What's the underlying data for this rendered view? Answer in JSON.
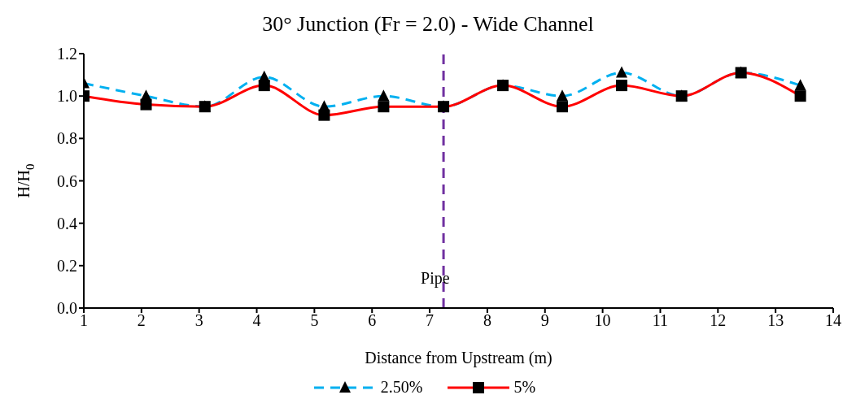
{
  "chart_data": {
    "type": "line",
    "title": "30° Junction (Fr = 2.0) - Wide Channel",
    "xlabel": "Distance from Upstream (m)",
    "ylabel": "H/H$_{0}$",
    "x": [
      1,
      2.08,
      3.1,
      4.13,
      5.17,
      6.2,
      7.24,
      8.27,
      9.3,
      10.33,
      11.37,
      12.4,
      13.43
    ],
    "series": [
      {
        "name": "2.50%",
        "color": "#00b0f0",
        "line_style": "dashed",
        "marker": "triangle",
        "values": [
          1.06,
          1.0,
          0.95,
          1.09,
          0.95,
          1.0,
          0.95,
          1.05,
          1.0,
          1.11,
          1.0,
          1.11,
          1.05
        ]
      },
      {
        "name": "5%",
        "color": "#ff0000",
        "line_style": "solid",
        "marker": "square",
        "values": [
          1.0,
          0.96,
          0.95,
          1.05,
          0.91,
          0.95,
          0.95,
          1.05,
          0.95,
          1.05,
          1.0,
          1.11,
          1.0
        ]
      }
    ],
    "xlim": [
      1,
      14
    ],
    "xticks": [
      1,
      2,
      3,
      4,
      5,
      6,
      7,
      8,
      9,
      10,
      11,
      12,
      13,
      14
    ],
    "ylim": [
      0,
      1.2
    ],
    "yticks": [
      {
        "value": 0,
        "label": "0.0"
      },
      {
        "value": 0.2,
        "label": "0.2"
      },
      {
        "value": 0.4,
        "label": "0.4"
      },
      {
        "value": 0.6,
        "label": "0.6"
      },
      {
        "value": 0.8,
        "label": "0.8"
      },
      {
        "value": 1.0,
        "label": "1.0"
      },
      {
        "value": 1.2,
        "label": "1.2"
      }
    ],
    "ref_lines": [
      {
        "axis": "x",
        "value": 7.24,
        "label": "Pipe",
        "color": "#7030a0",
        "line_style": "dashed"
      }
    ],
    "grid": false,
    "legend": "bottom"
  }
}
